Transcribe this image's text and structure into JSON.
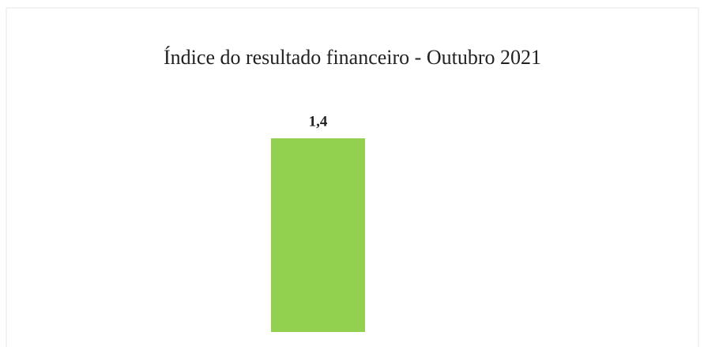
{
  "chart_data": {
    "type": "bar",
    "title": "Índice do resultado financeiro - Outubro 2021",
    "categories": [
      null
    ],
    "values": [
      1.4
    ],
    "value_labels": [
      "1,4"
    ],
    "color": "#92d050"
  }
}
